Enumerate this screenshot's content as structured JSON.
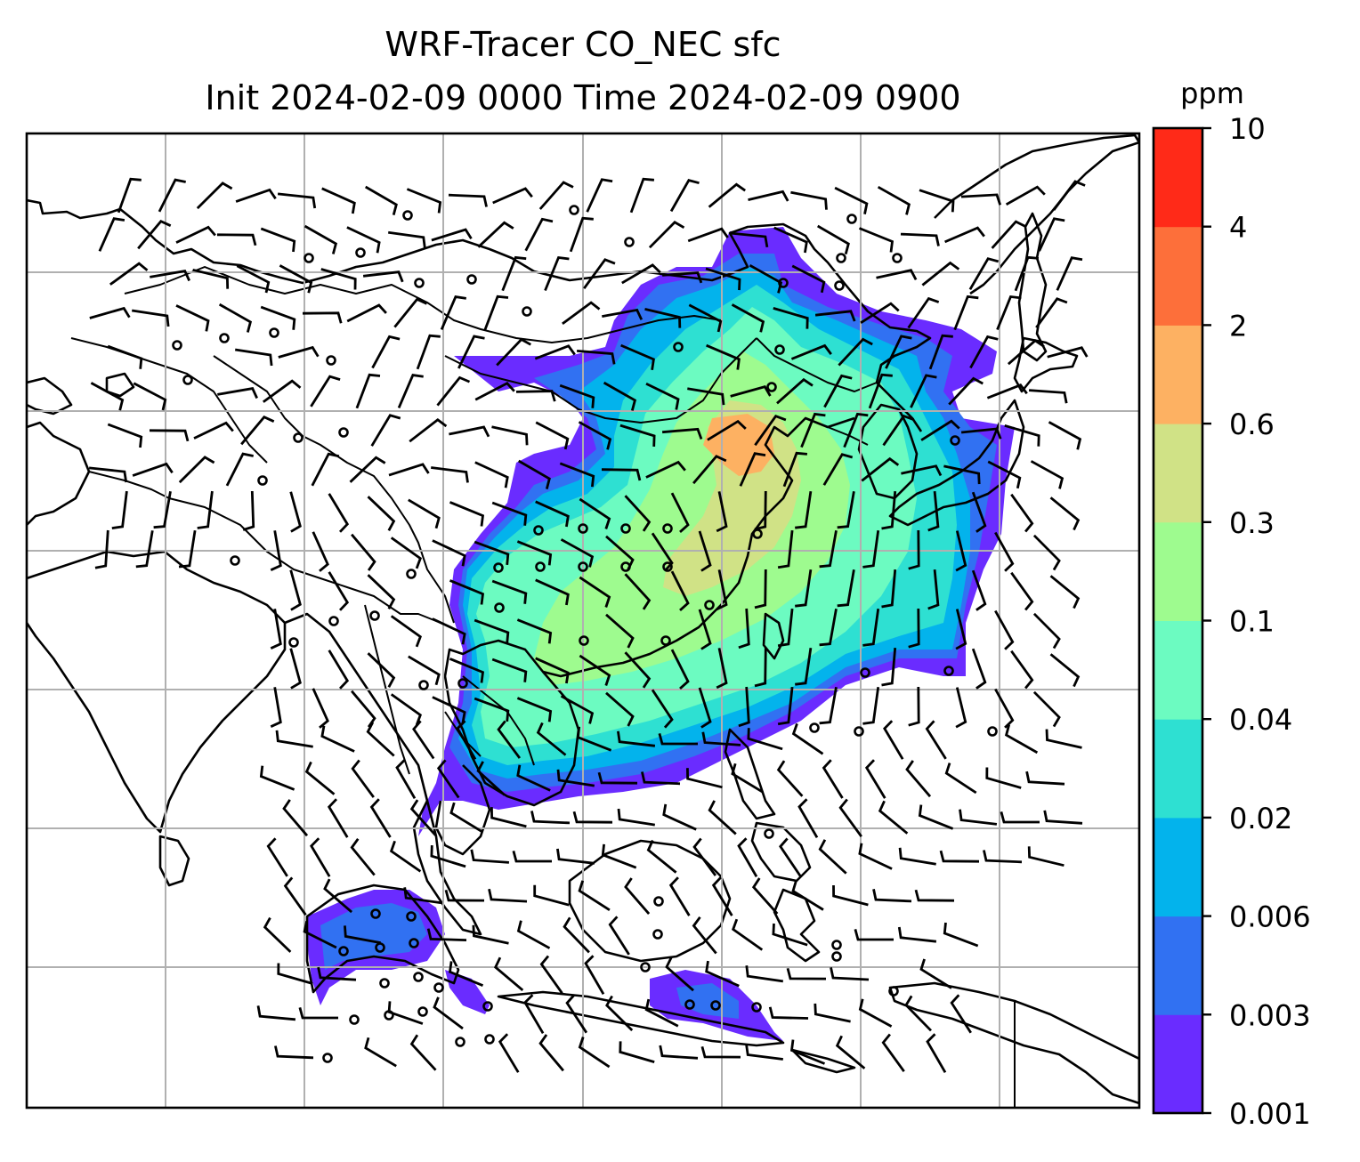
{
  "title": {
    "line1": "WRF-Tracer CO_NEC sfc",
    "line2": "Init 2024-02-09 0000 Time 2024-02-09 0900"
  },
  "colorbar": {
    "unit": "ppm",
    "levels": [
      "0.001",
      "0.003",
      "0.006",
      "0.02",
      "0.04",
      "0.1",
      "0.3",
      "0.6",
      "2",
      "4",
      "10"
    ],
    "colors": [
      "#6a2cff",
      "#3171f2",
      "#03b3ec",
      "#2ee0d2",
      "#6cfbc1",
      "#9efb8f",
      "#d0e286",
      "#fdb162",
      "#fd6f3a",
      "#ff2a18"
    ]
  },
  "map": {
    "gridlines": true,
    "coastline_color": "#000000",
    "grid_color": "#b0b0b0",
    "calm_marker": "open-circle",
    "wind_symbol": "barb"
  }
}
